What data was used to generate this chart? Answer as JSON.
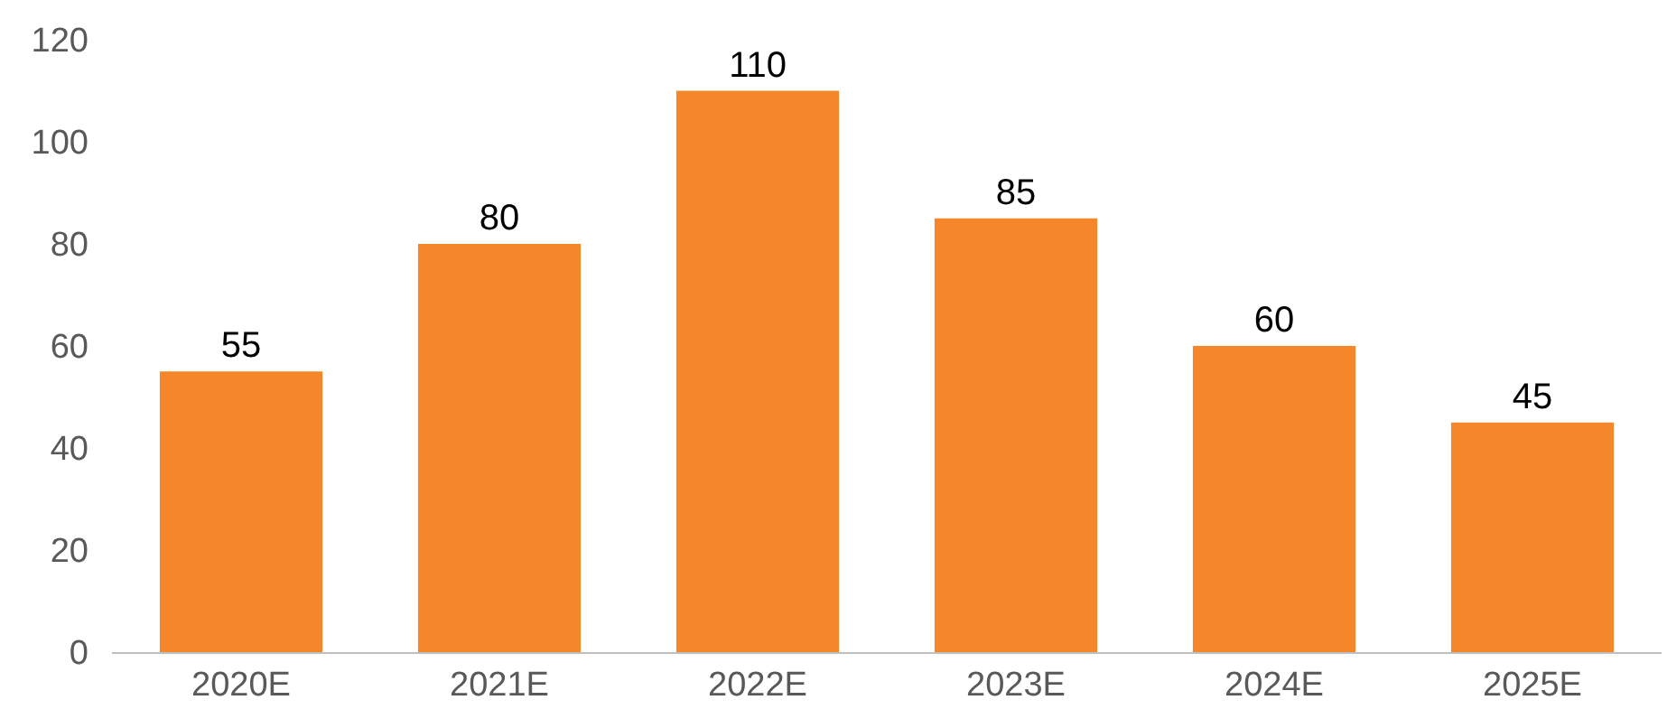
{
  "chart_data": {
    "type": "bar",
    "categories": [
      "2020E",
      "2021E",
      "2022E",
      "2023E",
      "2024E",
      "2025E"
    ],
    "values": [
      55,
      80,
      110,
      85,
      60,
      45
    ],
    "color": "#f5862a",
    "ylim": [
      0,
      120
    ],
    "yticks": [
      0,
      20,
      40,
      60,
      80,
      100,
      120
    ],
    "data_labels": true,
    "legend": false
  }
}
